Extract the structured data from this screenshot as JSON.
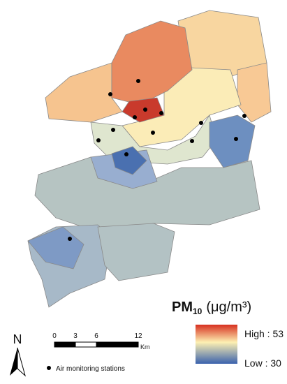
{
  "legend": {
    "title_main": "PM",
    "title_sub": "10",
    "title_unit": "(μg/m³)",
    "high": "High : 53",
    "low": "Low : 30"
  },
  "scale_bar": {
    "ticks": [
      "0",
      "3",
      "6",
      "12"
    ],
    "unit": "Km"
  },
  "north": "N",
  "stations_label": "Air monitoring stations"
}
